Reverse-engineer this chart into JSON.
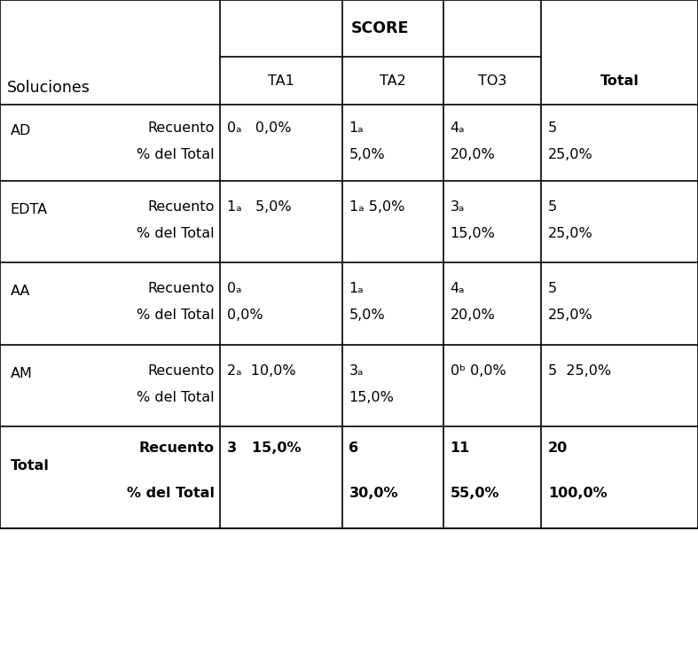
{
  "title": "SCORE",
  "col_headers": [
    "TA1",
    "TA2",
    "TO3",
    "Total"
  ],
  "background_color": "#ffffff",
  "line_color": "#000000",
  "text_color": "#000000",
  "cell_fontsize": 11.5,
  "fig_width": 7.87,
  "fig_height": 7.4,
  "rows": [
    {
      "label": "AD",
      "bold": false,
      "cells": [
        {
          "line1": "0ₐ   0,0%",
          "line2": ""
        },
        {
          "line1": "1ₐ",
          "line2": "5,0%"
        },
        {
          "line1": "4ₐ",
          "line2": "20,0%"
        },
        {
          "line1": "5",
          "line2": "25,0%"
        }
      ]
    },
    {
      "label": "EDTA",
      "bold": false,
      "cells": [
        {
          "line1": "1ₐ   5,0%",
          "line2": ""
        },
        {
          "line1": "1ₐ 5,0%",
          "line2": ""
        },
        {
          "line1": "3ₐ",
          "line2": "15,0%"
        },
        {
          "line1": "5",
          "line2": "25,0%"
        }
      ]
    },
    {
      "label": "AA",
      "bold": false,
      "cells": [
        {
          "line1": "0ₐ",
          "line2": "0,0%"
        },
        {
          "line1": "1ₐ",
          "line2": "5,0%"
        },
        {
          "line1": "4ₐ",
          "line2": "20,0%"
        },
        {
          "line1": "5",
          "line2": "25,0%"
        }
      ]
    },
    {
      "label": "AM",
      "bold": false,
      "cells": [
        {
          "line1": "2ₐ  10,0%",
          "line2": ""
        },
        {
          "line1": "3ₐ",
          "line2": "15,0%"
        },
        {
          "line1": "0ᵇ 0,0%",
          "line2": ""
        },
        {
          "line1": "5  25,0%",
          "line2": ""
        }
      ]
    },
    {
      "label": "Total",
      "bold": true,
      "cells": [
        {
          "line1": "3   15,0%",
          "line2": ""
        },
        {
          "line1": "6",
          "line2": "30,0%"
        },
        {
          "line1": "11",
          "line2": "55,0%"
        },
        {
          "line1": "20",
          "line2": "100,0%"
        }
      ]
    }
  ]
}
